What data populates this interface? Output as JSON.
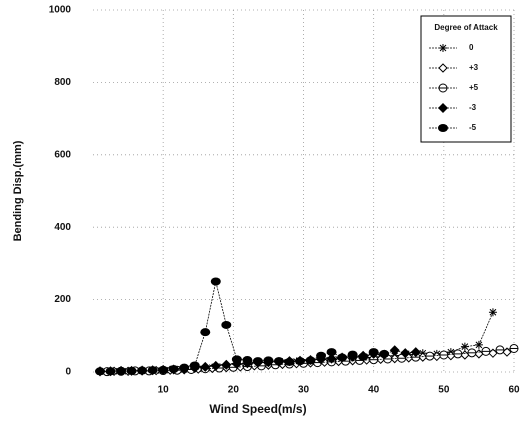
{
  "chart_data": {
    "type": "line",
    "xlabel": "Wind Speed(m/s)",
    "ylabel": "Bending Disp.(mm)",
    "xlim": [
      0,
      60
    ],
    "ylim": [
      0,
      1000
    ],
    "xticks": [
      10,
      20,
      30,
      40,
      50,
      60
    ],
    "yticks": [
      0,
      200,
      400,
      600,
      800,
      1000
    ],
    "grid": true,
    "legend_title": "Degree of Attack",
    "legend_position": "upper right",
    "series": [
      {
        "name": "0",
        "color": "#000000",
        "x": [
          1,
          3,
          5,
          7,
          9,
          11,
          13,
          15,
          17,
          19,
          21,
          23,
          25,
          27,
          29,
          31,
          33,
          35,
          37,
          39,
          41,
          43,
          45,
          47,
          49,
          51,
          53,
          55,
          57
        ],
        "values": [
          1,
          2,
          2,
          3,
          4,
          5,
          7,
          9,
          12,
          15,
          18,
          21,
          24,
          27,
          29,
          31,
          33,
          35,
          38,
          40,
          42,
          45,
          48,
          52,
          50,
          55,
          70,
          75,
          165
        ]
      },
      {
        "name": "+3",
        "color": "#000000",
        "x": [
          1,
          3,
          5,
          7,
          9,
          11,
          13,
          15,
          17,
          19,
          21,
          23,
          25,
          27,
          29,
          31,
          33,
          35,
          37,
          39,
          41,
          43,
          45,
          47,
          49,
          51,
          53,
          55,
          57,
          59
        ],
        "values": [
          1,
          2,
          2,
          3,
          4,
          5,
          6,
          8,
          10,
          12,
          14,
          17,
          19,
          21,
          23,
          25,
          27,
          29,
          31,
          33,
          35,
          37,
          39,
          41,
          43,
          45,
          47,
          50,
          52,
          55
        ]
      },
      {
        "name": "+5",
        "color": "#000000",
        "x": [
          2,
          4,
          6,
          8,
          10,
          12,
          14,
          16,
          18,
          20,
          22,
          24,
          26,
          28,
          30,
          32,
          34,
          36,
          38,
          40,
          42,
          44,
          46,
          48,
          50,
          52,
          54,
          56,
          58,
          60
        ],
        "values": [
          1,
          2,
          3,
          3,
          4,
          5,
          7,
          9,
          11,
          13,
          15,
          17,
          20,
          22,
          24,
          26,
          28,
          30,
          32,
          34,
          36,
          38,
          41,
          44,
          47,
          50,
          53,
          57,
          61,
          65
        ]
      },
      {
        "name": "-3",
        "color": "#000000",
        "x": [
          1,
          2.5,
          4,
          5.5,
          7,
          8.5,
          10,
          11.5,
          13,
          14.5,
          16,
          17.5,
          19,
          20.5,
          22,
          23.5,
          25,
          26.5,
          28,
          29.5,
          31,
          32.5,
          34,
          35.5,
          37,
          38.5,
          40,
          41.5,
          43,
          44.5,
          46
        ],
        "values": [
          2,
          2,
          3,
          3,
          4,
          5,
          6,
          7,
          9,
          11,
          14,
          17,
          20,
          22,
          24,
          26,
          27,
          28,
          30,
          31,
          33,
          35,
          37,
          40,
          42,
          45,
          50,
          48,
          60,
          52,
          55
        ]
      },
      {
        "name": "-5",
        "color": "#000000",
        "x": [
          1,
          2.5,
          4,
          5.5,
          7,
          8.5,
          10,
          11.5,
          13,
          14.5,
          16,
          17.5,
          19,
          20.5,
          22,
          23.5,
          25,
          26.5,
          28,
          29.5,
          31,
          32.5,
          34,
          35.5,
          37,
          38.5,
          40,
          41.5
        ],
        "values": [
          2,
          2,
          3,
          3,
          4,
          5,
          6,
          8,
          12,
          18,
          110,
          250,
          130,
          35,
          33,
          30,
          32,
          30,
          28,
          30,
          32,
          45,
          55,
          40,
          48,
          42,
          55,
          50
        ]
      }
    ]
  }
}
